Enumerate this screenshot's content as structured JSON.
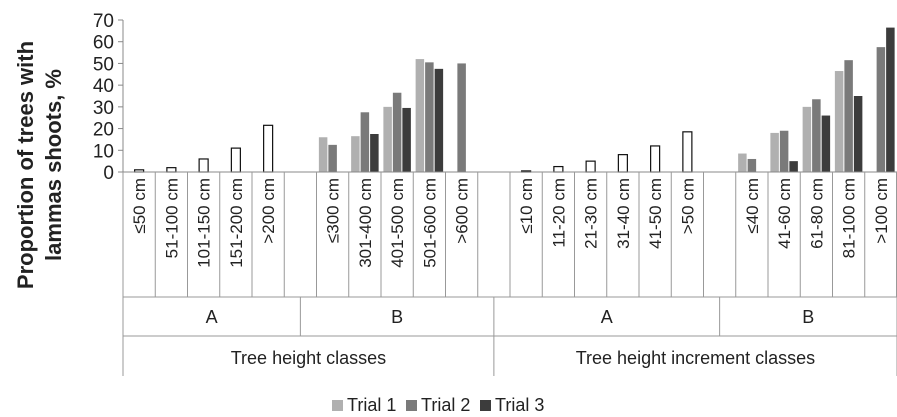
{
  "chart_data": {
    "type": "bar",
    "ylabel": "Proportion of trees with lammas shoots, %",
    "ylim": [
      0,
      70
    ],
    "yticks": [
      0,
      10,
      20,
      30,
      40,
      50,
      60,
      70
    ],
    "grid": false,
    "legend_position": "bottom",
    "series": [
      {
        "name": "Trial 1",
        "color": "#b0b0b0"
      },
      {
        "name": "Trial 2",
        "color": "#7a7a7a"
      },
      {
        "name": "Trial 3",
        "color": "#3c3c3c"
      }
    ],
    "groups": [
      {
        "section": "Tree height classes",
        "group": "A",
        "categories": [
          {
            "label": "≤50 cm",
            "values": [
              1,
              null,
              null
            ]
          },
          {
            "label": "51-100 cm",
            "values": [
              2,
              null,
              null
            ]
          },
          {
            "label": "101-150 cm",
            "values": [
              6,
              null,
              null
            ]
          },
          {
            "label": "151-200 cm",
            "values": [
              11,
              null,
              null
            ]
          },
          {
            "label": ">200 cm",
            "values": [
              21.5,
              null,
              null
            ]
          }
        ],
        "style": "outline"
      },
      {
        "section": "Tree height classes",
        "group": "B",
        "categories": [
          {
            "label": "≤300 cm",
            "values": [
              16,
              12.5,
              null
            ]
          },
          {
            "label": "301-400 cm",
            "values": [
              16.5,
              27.5,
              17.5
            ]
          },
          {
            "label": "401-500 cm",
            "values": [
              30,
              36.5,
              29.5
            ]
          },
          {
            "label": "501-600 cm",
            "values": [
              52,
              50.5,
              47.5
            ]
          },
          {
            "label": ">600 cm",
            "values": [
              null,
              50,
              null
            ]
          }
        ],
        "style": "filled"
      },
      {
        "section": "Tree height increment classes",
        "group": "A",
        "categories": [
          {
            "label": "≤10 cm",
            "values": [
              0.5,
              null,
              null
            ]
          },
          {
            "label": "11-20 cm",
            "values": [
              2.5,
              null,
              null
            ]
          },
          {
            "label": "21-30 cm",
            "values": [
              5,
              null,
              null
            ]
          },
          {
            "label": "31-40 cm",
            "values": [
              8,
              null,
              null
            ]
          },
          {
            "label": "41-50 cm",
            "values": [
              12,
              null,
              null
            ]
          },
          {
            "label": ">50 cm",
            "values": [
              18.5,
              null,
              null
            ]
          }
        ],
        "style": "outline"
      },
      {
        "section": "Tree height increment classes",
        "group": "B",
        "categories": [
          {
            "label": "≤40 cm",
            "values": [
              8.5,
              6,
              null
            ]
          },
          {
            "label": "41-60 cm",
            "values": [
              18,
              19,
              5
            ]
          },
          {
            "label": "61-80 cm",
            "values": [
              30,
              33.5,
              26
            ]
          },
          {
            "label": "81-100 cm",
            "values": [
              46.5,
              51.5,
              35
            ]
          },
          {
            "label": ">100 cm",
            "values": [
              null,
              57.5,
              66.5
            ]
          }
        ],
        "style": "filled"
      }
    ]
  }
}
